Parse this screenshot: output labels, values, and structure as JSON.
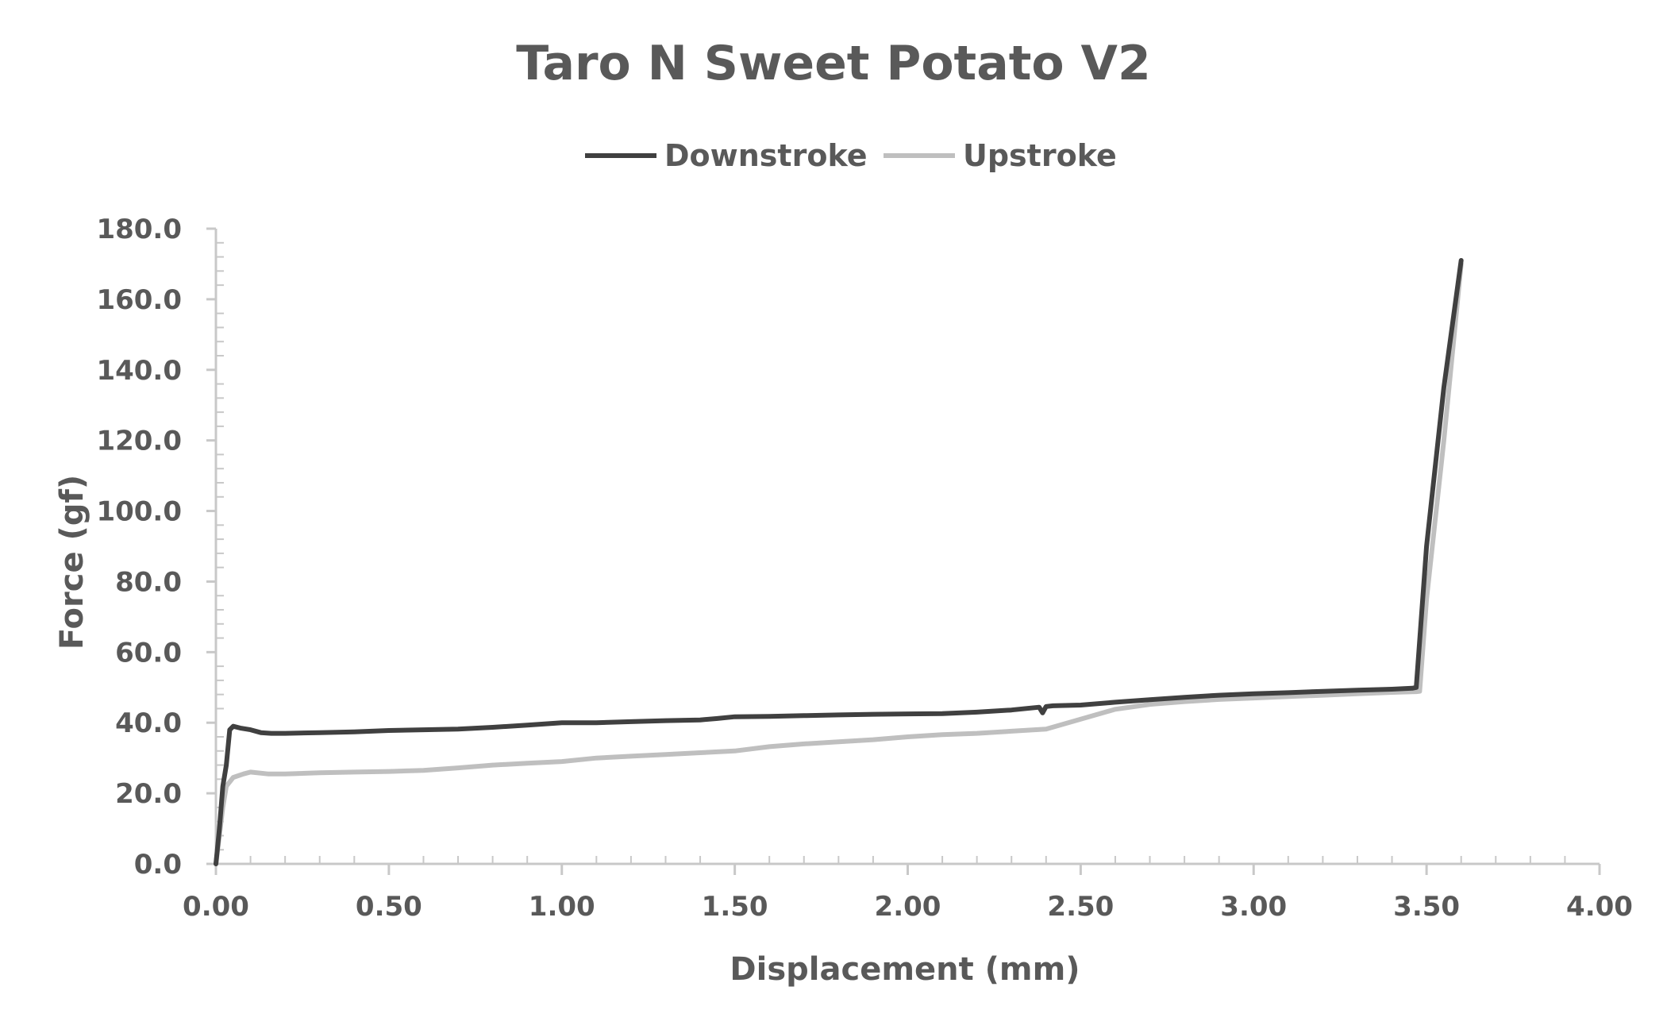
{
  "chart_data": {
    "type": "line",
    "title": "Taro N Sweet Potato V2",
    "xlabel": "Displacement (mm)",
    "ylabel": "Force (gf)",
    "xlim": [
      0,
      4
    ],
    "ylim": [
      0,
      180
    ],
    "x_ticks": [
      "0.00",
      "0.50",
      "1.00",
      "1.50",
      "2.00",
      "2.50",
      "3.00",
      "3.50",
      "4.00"
    ],
    "y_ticks": [
      "0.0",
      "20.0",
      "40.0",
      "60.0",
      "80.0",
      "100.0",
      "120.0",
      "140.0",
      "160.0",
      "180.0"
    ],
    "grid": false,
    "legend_position": "top",
    "series": [
      {
        "name": "Downstroke",
        "color": "#404040",
        "x": [
          0.0,
          0.01,
          0.02,
          0.03,
          0.04,
          0.05,
          0.07,
          0.1,
          0.13,
          0.16,
          0.2,
          0.3,
          0.4,
          0.5,
          0.6,
          0.7,
          0.8,
          0.9,
          1.0,
          1.1,
          1.2,
          1.3,
          1.4,
          1.45,
          1.5,
          1.6,
          1.7,
          1.8,
          1.9,
          2.0,
          2.1,
          2.2,
          2.3,
          2.38,
          2.39,
          2.4,
          2.42,
          2.5,
          2.6,
          2.7,
          2.8,
          2.9,
          3.0,
          3.1,
          3.2,
          3.3,
          3.4,
          3.46,
          3.47,
          3.5,
          3.55,
          3.6
        ],
        "y": [
          0.0,
          10.0,
          22.0,
          28.0,
          38.0,
          39.0,
          38.5,
          38.0,
          37.2,
          37.0,
          37.0,
          37.2,
          37.4,
          37.8,
          38.0,
          38.2,
          38.7,
          39.3,
          40.0,
          40.0,
          40.3,
          40.6,
          40.8,
          41.2,
          41.7,
          41.8,
          42.0,
          42.2,
          42.4,
          42.5,
          42.6,
          43.0,
          43.6,
          44.4,
          42.8,
          44.6,
          44.8,
          45.0,
          45.8,
          46.5,
          47.2,
          47.8,
          48.2,
          48.5,
          48.9,
          49.2,
          49.5,
          49.8,
          50.0,
          90.0,
          135.0,
          171.0
        ]
      },
      {
        "name": "Upstroke",
        "color": "#bfbfbf",
        "x": [
          0.0,
          0.01,
          0.02,
          0.03,
          0.05,
          0.08,
          0.1,
          0.15,
          0.2,
          0.3,
          0.4,
          0.5,
          0.6,
          0.7,
          0.8,
          0.9,
          1.0,
          1.1,
          1.2,
          1.3,
          1.4,
          1.5,
          1.6,
          1.7,
          1.8,
          1.9,
          2.0,
          2.1,
          2.2,
          2.3,
          2.4,
          2.5,
          2.6,
          2.7,
          2.8,
          2.9,
          3.0,
          3.1,
          3.2,
          3.3,
          3.4,
          3.47,
          3.48,
          3.5,
          3.55,
          3.6
        ],
        "y": [
          0.0,
          8.0,
          16.0,
          22.0,
          24.5,
          25.5,
          26.0,
          25.5,
          25.5,
          25.8,
          26.0,
          26.2,
          26.5,
          27.2,
          28.0,
          28.5,
          29.0,
          30.0,
          30.5,
          31.0,
          31.5,
          32.0,
          33.2,
          34.0,
          34.6,
          35.2,
          36.0,
          36.6,
          37.0,
          37.6,
          38.2,
          41.0,
          43.8,
          45.2,
          46.0,
          46.6,
          47.0,
          47.4,
          47.8,
          48.2,
          48.6,
          48.8,
          48.9,
          75.0,
          120.0,
          170.0
        ]
      }
    ]
  }
}
